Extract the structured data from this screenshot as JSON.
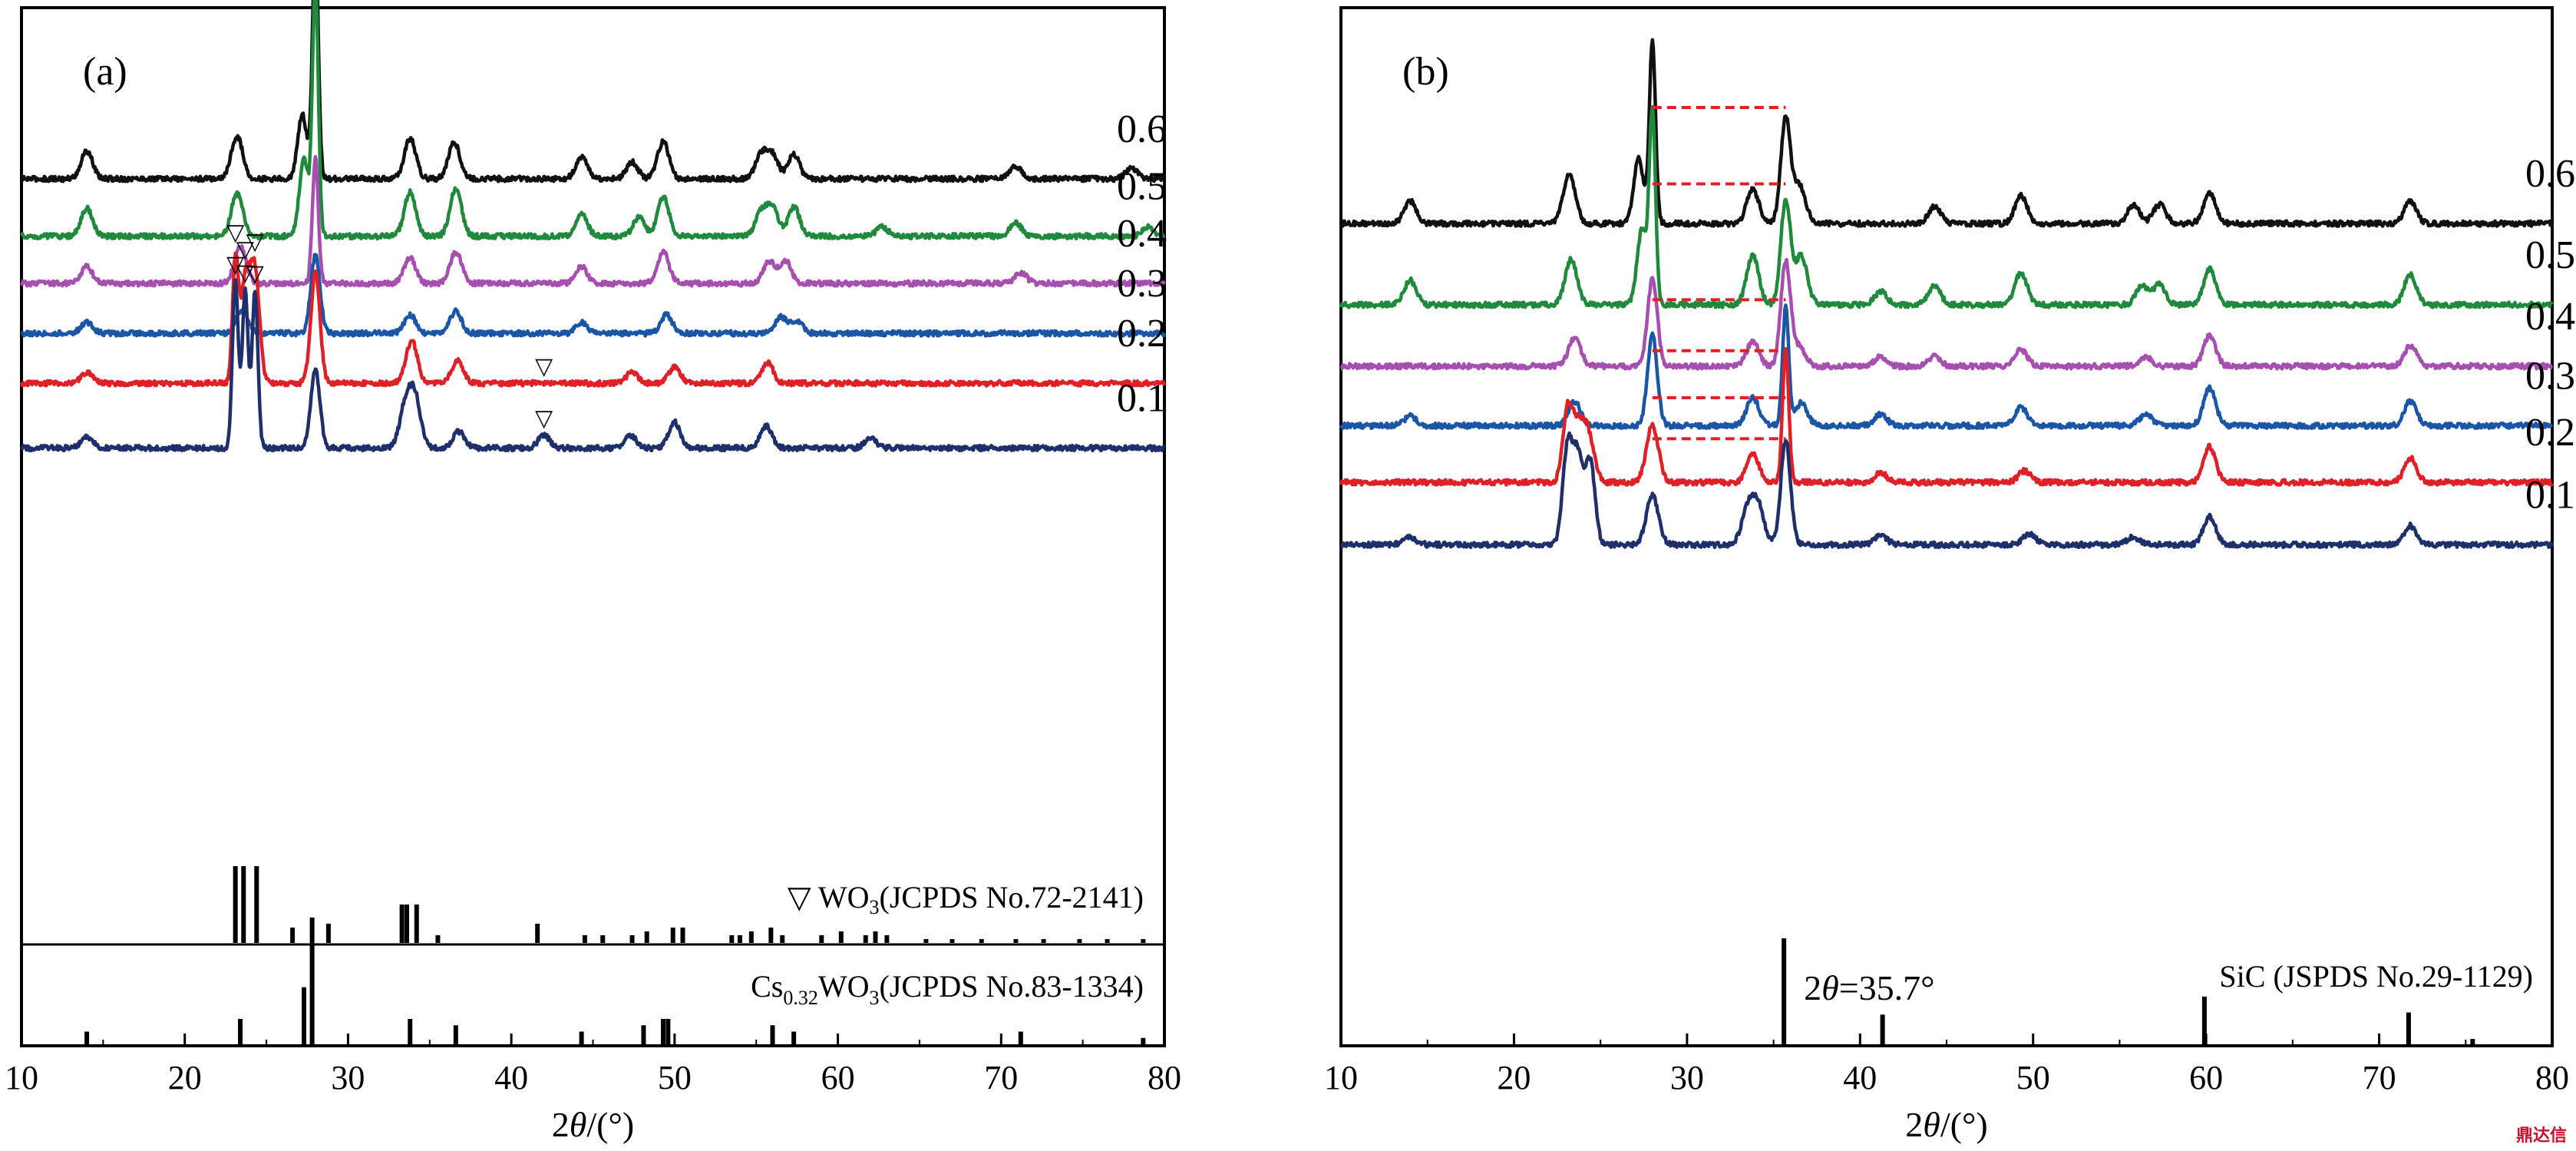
{
  "colors": {
    "frame": "#000000",
    "samples": {
      "0.6": "#111111",
      "0.5": "#1f8a3c",
      "0.4": "#a64fb0",
      "0.3": "#1a56a8",
      "0.2": "#e01f26",
      "0.1": "#1e2f6b"
    },
    "shift_marker": "#e01f26",
    "reference": "#000000"
  },
  "watermark": "鼎达信",
  "chart_data": [
    {
      "type": "line",
      "panel_label": "(a)",
      "xlabel": "2θ/(°)",
      "xlim": [
        10,
        80
      ],
      "xticks": [
        10,
        20,
        30,
        40,
        50,
        60,
        70,
        80
      ],
      "grid": false,
      "legend": "none",
      "series": [
        {
          "name": "0.6",
          "baseline": 0.95,
          "peaks": [
            [
              14.0,
              1.5
            ],
            [
              23.2,
              2.3
            ],
            [
              27.2,
              3.5
            ],
            [
              28.0,
              12.8
            ],
            [
              33.8,
              2.2
            ],
            [
              36.5,
              2.0
            ],
            [
              44.3,
              1.2
            ],
            [
              47.4,
              0.9
            ],
            [
              49.3,
              2.0
            ],
            [
              55.3,
              1.3
            ],
            [
              56.0,
              1.3
            ],
            [
              57.3,
              1.3
            ],
            [
              70.9,
              0.7
            ],
            [
              78.0,
              0.6
            ]
          ]
        },
        {
          "name": "0.5",
          "baseline": 4.05,
          "peaks": [
            [
              14.0,
              1.5
            ],
            [
              23.2,
              2.3
            ],
            [
              27.3,
              4.2
            ],
            [
              28.0,
              13.5
            ],
            [
              33.8,
              2.4
            ],
            [
              36.6,
              2.6
            ],
            [
              44.3,
              1.2
            ],
            [
              47.8,
              1.0
            ],
            [
              49.3,
              2.1
            ],
            [
              55.3,
              1.3
            ],
            [
              56.0,
              1.5
            ],
            [
              57.3,
              1.6
            ],
            [
              62.7,
              0.5
            ],
            [
              70.9,
              0.7
            ],
            [
              79.0,
              0.5
            ]
          ]
        },
        {
          "name": "0.4",
          "baseline": 6.6,
          "peaks": [
            [
              14.0,
              0.9
            ],
            [
              23.4,
              2.0
            ],
            [
              28.0,
              6.8
            ],
            [
              33.8,
              1.4
            ],
            [
              36.6,
              1.7
            ],
            [
              44.3,
              0.9
            ],
            [
              49.3,
              1.7
            ],
            [
              55.8,
              1.2
            ],
            [
              56.8,
              1.2
            ],
            [
              71.2,
              0.6
            ]
          ]
        },
        {
          "name": "0.3",
          "baseline": 9.3,
          "peaks": [
            [
              14.0,
              0.6
            ],
            [
              23.5,
              1.3
            ],
            [
              28.0,
              4.2
            ],
            [
              33.8,
              1.0
            ],
            [
              36.6,
              1.2
            ],
            [
              44.3,
              0.6
            ],
            [
              49.5,
              1.0
            ],
            [
              56.5,
              0.9
            ],
            [
              57.5,
              0.7
            ]
          ]
        },
        {
          "name": "0.2",
          "baseline": 12.0,
          "peaks": [
            [
              14.0,
              0.6
            ],
            [
              23.1,
              6.5
            ],
            [
              23.7,
              5.5
            ],
            [
              24.3,
              6.0
            ],
            [
              28.0,
              6.0
            ],
            [
              33.9,
              2.3
            ],
            [
              36.7,
              1.2
            ],
            [
              47.4,
              0.6
            ],
            [
              50.0,
              0.9
            ],
            [
              55.7,
              1.1
            ]
          ]
        },
        {
          "name": "0.1",
          "baseline": 15.5,
          "peaks": [
            [
              14.0,
              0.6
            ],
            [
              23.1,
              9.0
            ],
            [
              23.7,
              8.5
            ],
            [
              24.3,
              8.5
            ],
            [
              28.0,
              4.2
            ],
            [
              33.5,
              2.2
            ],
            [
              34.1,
              2.7
            ],
            [
              36.8,
              0.9
            ],
            [
              42.0,
              0.7
            ],
            [
              47.3,
              0.7
            ],
            [
              50.0,
              1.4
            ],
            [
              55.6,
              1.2
            ],
            [
              62.0,
              0.5
            ]
          ]
        }
      ],
      "markers": [
        {
          "symbol": "▽",
          "x": [
            23.1,
            23.7,
            24.3,
            42.0
          ],
          "series": "0.2"
        },
        {
          "symbol": "▽",
          "x": [
            23.1,
            23.7,
            24.3,
            42.0
          ],
          "series": "0.1"
        }
      ],
      "references": [
        {
          "label": "▽ WO3(JCPDS No.72-2141)",
          "label_parts": [
            "▽ WO",
            "3",
            "(JCPDS No.72-2141)"
          ],
          "sticks": [
            [
              23.1,
              1.0
            ],
            [
              23.6,
              1.0
            ],
            [
              24.4,
              1.0
            ],
            [
              26.6,
              0.2
            ],
            [
              28.8,
              0.25
            ],
            [
              33.3,
              0.5
            ],
            [
              33.6,
              0.5
            ],
            [
              34.2,
              0.5
            ],
            [
              35.5,
              0.1
            ],
            [
              41.6,
              0.25
            ],
            [
              44.5,
              0.1
            ],
            [
              45.6,
              0.1
            ],
            [
              47.4,
              0.1
            ],
            [
              48.3,
              0.15
            ],
            [
              49.9,
              0.2
            ],
            [
              50.5,
              0.2
            ],
            [
              53.5,
              0.1
            ],
            [
              54.0,
              0.1
            ],
            [
              54.7,
              0.15
            ],
            [
              55.9,
              0.2
            ],
            [
              56.6,
              0.1
            ],
            [
              59.0,
              0.1
            ],
            [
              60.2,
              0.15
            ],
            [
              61.7,
              0.1
            ],
            [
              62.3,
              0.15
            ],
            [
              63.0,
              0.1
            ],
            [
              65.4,
              0.05
            ],
            [
              67.0,
              0.05
            ],
            [
              68.8,
              0.05
            ],
            [
              70.9,
              0.05
            ],
            [
              72.6,
              0.05
            ],
            [
              74.8,
              0.05
            ],
            [
              76.5,
              0.05
            ],
            [
              78.7,
              0.05
            ]
          ]
        },
        {
          "label": "Cs0.32WO3(JCPDS No.83-1334)",
          "label_parts": [
            "Cs",
            "0.32",
            "WO",
            "3",
            "(JCPDS No.83-1334)"
          ],
          "sticks": [
            [
              14.0,
              0.1
            ],
            [
              23.4,
              0.2
            ],
            [
              27.3,
              0.45
            ],
            [
              27.8,
              1.0
            ],
            [
              33.8,
              0.2
            ],
            [
              36.6,
              0.15
            ],
            [
              44.3,
              0.1
            ],
            [
              48.1,
              0.15
            ],
            [
              49.3,
              0.2
            ],
            [
              49.6,
              0.2
            ],
            [
              56.0,
              0.15
            ],
            [
              57.3,
              0.1
            ],
            [
              71.2,
              0.1
            ],
            [
              78.7,
              0.05
            ]
          ]
        }
      ]
    },
    {
      "type": "line",
      "panel_label": "(b)",
      "xlabel": "2θ/(°)",
      "xlim": [
        10,
        80
      ],
      "xticks": [
        10,
        20,
        30,
        40,
        50,
        60,
        70,
        80
      ],
      "grid": false,
      "legend": "none",
      "series": [
        {
          "name": "0.6",
          "baseline": 3.3,
          "peaks": [
            [
              14.0,
              1.2
            ],
            [
              23.2,
              2.6
            ],
            [
              27.2,
              3.5
            ],
            [
              28.0,
              9.6
            ],
            [
              33.8,
              1.8
            ],
            [
              35.7,
              5.5
            ],
            [
              36.5,
              2.0
            ],
            [
              44.3,
              0.9
            ],
            [
              49.3,
              1.5
            ],
            [
              55.8,
              1.0
            ],
            [
              57.3,
              1.0
            ],
            [
              60.2,
              1.6
            ],
            [
              71.8,
              1.2
            ]
          ]
        },
        {
          "name": "0.5",
          "baseline": 7.6,
          "peaks": [
            [
              14.0,
              1.3
            ],
            [
              23.3,
              2.4
            ],
            [
              27.4,
              4.0
            ],
            [
              28.0,
              10.0
            ],
            [
              33.8,
              2.6
            ],
            [
              35.7,
              5.5
            ],
            [
              36.6,
              2.6
            ],
            [
              41.2,
              0.7
            ],
            [
              44.3,
              1.0
            ],
            [
              49.3,
              1.7
            ],
            [
              56.3,
              1.0
            ],
            [
              57.3,
              1.1
            ],
            [
              60.2,
              1.9
            ],
            [
              71.8,
              1.6
            ]
          ]
        },
        {
          "name": "0.4",
          "baseline": 10.85,
          "peaks": [
            [
              23.5,
              1.5
            ],
            [
              28.0,
              4.6
            ],
            [
              33.8,
              1.3
            ],
            [
              35.7,
              5.5
            ],
            [
              36.5,
              1.0
            ],
            [
              41.2,
              0.5
            ],
            [
              44.3,
              0.5
            ],
            [
              49.3,
              0.9
            ],
            [
              56.5,
              0.5
            ],
            [
              60.2,
              1.6
            ],
            [
              71.8,
              1.1
            ]
          ]
        },
        {
          "name": "0.3",
          "baseline": 14.0,
          "peaks": [
            [
              14.0,
              0.5
            ],
            [
              23.5,
              1.3
            ],
            [
              28.0,
              4.8
            ],
            [
              33.8,
              1.5
            ],
            [
              35.7,
              6.2
            ],
            [
              36.6,
              1.2
            ],
            [
              41.2,
              0.6
            ],
            [
              49.3,
              1.0
            ],
            [
              56.5,
              0.6
            ],
            [
              60.2,
              2.0
            ],
            [
              71.8,
              1.3
            ]
          ]
        },
        {
          "name": "0.2",
          "baseline": 17.0,
          "peaks": [
            [
              23.1,
              3.6
            ],
            [
              23.7,
              2.6
            ],
            [
              24.3,
              2.3
            ],
            [
              28.0,
              3.0
            ],
            [
              33.8,
              1.5
            ],
            [
              35.7,
              7.0
            ],
            [
              41.2,
              0.5
            ],
            [
              49.5,
              0.6
            ],
            [
              60.2,
              1.9
            ],
            [
              71.8,
              1.3
            ]
          ]
        },
        {
          "name": "0.1",
          "baseline": 20.3,
          "peaks": [
            [
              14.0,
              0.4
            ],
            [
              23.1,
              5.2
            ],
            [
              23.7,
              4.5
            ],
            [
              24.4,
              4.4
            ],
            [
              28.0,
              2.6
            ],
            [
              33.5,
              1.8
            ],
            [
              34.1,
              2.0
            ],
            [
              35.7,
              5.5
            ],
            [
              41.2,
              0.5
            ],
            [
              49.8,
              0.6
            ],
            [
              55.8,
              0.4
            ],
            [
              60.2,
              1.5
            ],
            [
              71.8,
              1.0
            ]
          ]
        }
      ],
      "shift_markers": [
        {
          "series": "0.6",
          "x": [
            28.0,
            35.7
          ]
        },
        {
          "series": "0.5",
          "x": [
            28.0,
            35.7
          ]
        },
        {
          "series": "0.4",
          "x": [
            28.0,
            35.7
          ]
        },
        {
          "series": "0.3",
          "x": [
            28.0,
            35.7
          ]
        },
        {
          "series": "0.2",
          "x": [
            28.0,
            35.7
          ]
        },
        {
          "series": "0.1",
          "x": [
            28.0,
            35.7
          ]
        }
      ],
      "annotation": {
        "prefix": "2",
        "theta": "θ",
        "rest": "=35.7°"
      },
      "references": [
        {
          "label": "SiC (JSPDS No.29-1129)",
          "sticks": [
            [
              35.6,
              1.0
            ],
            [
              41.3,
              0.28
            ],
            [
              59.9,
              0.45
            ],
            [
              71.7,
              0.3
            ],
            [
              75.4,
              0.05
            ]
          ]
        }
      ]
    }
  ]
}
